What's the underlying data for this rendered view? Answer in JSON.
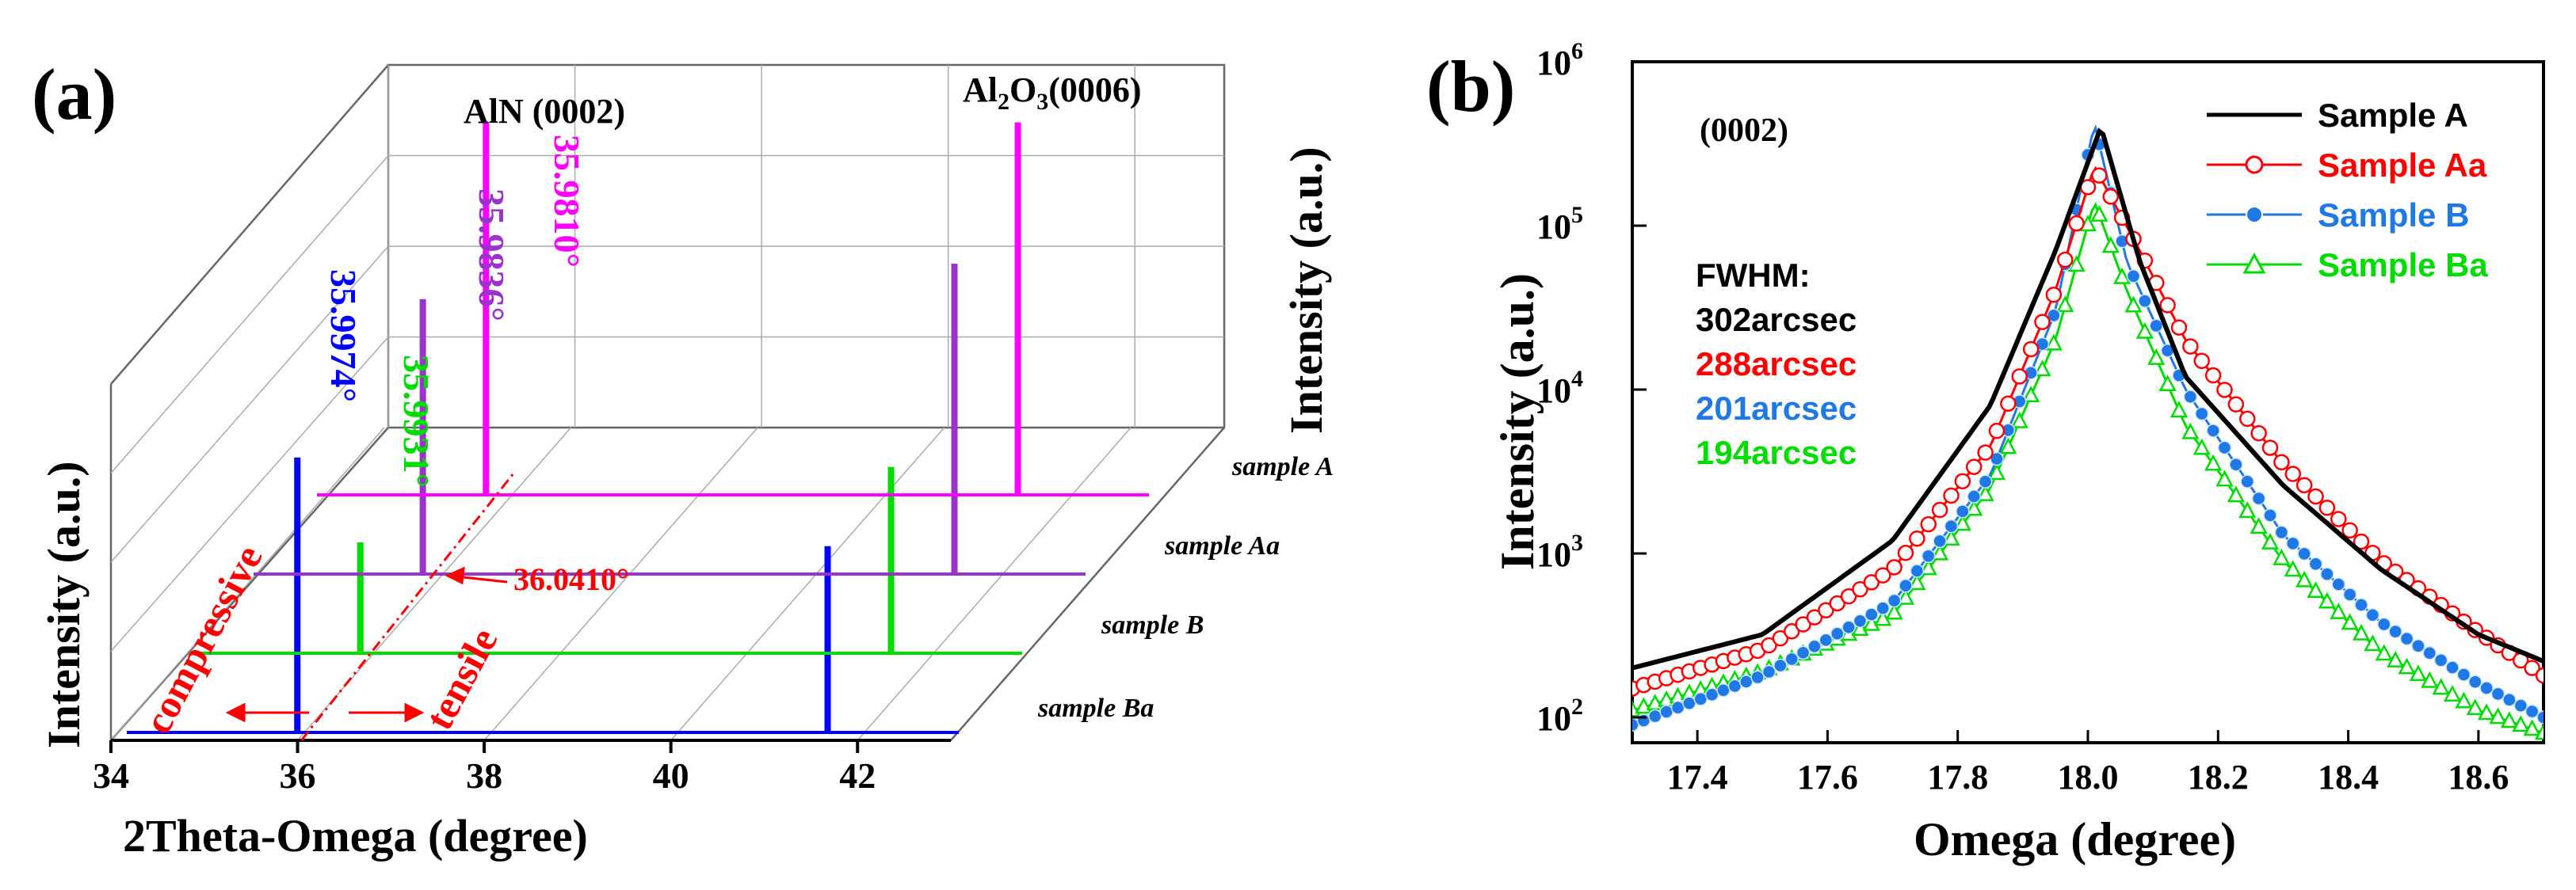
{
  "colors": {
    "sample_A": "#ff00ff",
    "sample_Aa": "#9933cc",
    "sample_B": "#00dd00",
    "sample_Ba": "#0000ff",
    "annot": "#ff0000",
    "b_A": "#000000",
    "b_Aa": "#ff0000",
    "b_B": "#1e78e6",
    "b_Ba": "#00dd00"
  },
  "chart_data": [
    {
      "panel": "(a)",
      "type": "line",
      "subtype": "3d-waterfall",
      "xlabel": "2Theta-Omega (degree)",
      "zlabel": "Intensity (a.u.)",
      "xlim": [
        34,
        43
      ],
      "xticks": [
        "34",
        "36",
        "38",
        "40",
        "42"
      ],
      "peak_labels": {
        "left": "AlN (0002)",
        "right_main": "Al",
        "right_sub": "2",
        "right_mid": "O",
        "right_sub2": "3",
        "right_end": "(0006)"
      },
      "series": [
        {
          "name": "sample Ba",
          "aln_peak": 35.9974,
          "aln_label": "35.9974°",
          "aln_height": 0.62,
          "al2o3_peak": 41.68,
          "al2o3_height": 0.42
        },
        {
          "name": "sample B",
          "aln_peak": 35.9931,
          "aln_label": "35.9931°",
          "aln_height": 0.25,
          "al2o3_peak": 41.68,
          "al2o3_height": 0.42
        },
        {
          "name": "sample Aa",
          "aln_peak": 35.9836,
          "aln_label": "35.9836°",
          "aln_height": 0.62,
          "al2o3_peak": 41.68,
          "al2o3_height": 0.7
        },
        {
          "name": "sample A",
          "aln_peak": 35.981,
          "aln_label": "35.9810°",
          "aln_height": 0.84,
          "al2o3_peak": 41.68,
          "al2o3_height": 0.84
        }
      ],
      "reference_line": {
        "value": 36.041,
        "label": "36.0410°"
      },
      "annotations": {
        "compressive": "compressive",
        "tensile": "tensile"
      }
    },
    {
      "panel": "(b)",
      "type": "line",
      "yscale": "log",
      "title_tag": "(0002)",
      "xlabel": "Omega (degree)",
      "ylabel": "Intensity (a.u.)",
      "xlim": [
        17.3,
        18.7
      ],
      "ylim": [
        70,
        1000000
      ],
      "xticks": [
        "17.4",
        "17.6",
        "17.8",
        "18.0",
        "18.2",
        "18.4",
        "18.6"
      ],
      "yticks": [
        {
          "base": "10",
          "exp": "2",
          "value": 100
        },
        {
          "base": "10",
          "exp": "3",
          "value": 1000
        },
        {
          "base": "10",
          "exp": "4",
          "value": 10000
        },
        {
          "base": "10",
          "exp": "5",
          "value": 100000
        },
        {
          "base": "10",
          "exp": "6",
          "value": 1000000
        }
      ],
      "fwhm_title": "FWHM:",
      "series": [
        {
          "name": "Sample A",
          "fwhm": "302arcsec",
          "peak": 400000,
          "center": 18.02,
          "left": [
            [
              17.3,
              200
            ],
            [
              17.5,
              320
            ],
            [
              17.7,
              1200
            ],
            [
              17.85,
              8000
            ],
            [
              17.95,
              70000
            ],
            [
              18.02,
              400000
            ]
          ],
          "right": [
            [
              18.02,
              400000
            ],
            [
              18.08,
              60000
            ],
            [
              18.15,
              12000
            ],
            [
              18.3,
              2600
            ],
            [
              18.45,
              800
            ],
            [
              18.6,
              320
            ],
            [
              18.7,
              220
            ]
          ]
        },
        {
          "name": "Sample Aa",
          "fwhm": "288arcsec",
          "peak": 230000,
          "center": 18.01,
          "left": [
            [
              17.3,
              150
            ],
            [
              17.5,
              260
            ],
            [
              17.7,
              800
            ],
            [
              17.85,
              4500
            ],
            [
              17.95,
              40000
            ],
            [
              18.01,
              230000
            ]
          ],
          "right": [
            [
              18.01,
              230000
            ],
            [
              18.08,
              70000
            ],
            [
              18.15,
              20000
            ],
            [
              18.3,
              3500
            ],
            [
              18.45,
              900
            ],
            [
              18.6,
              330
            ],
            [
              18.7,
              180
            ]
          ]
        },
        {
          "name": "Sample B",
          "fwhm": "201arcsec",
          "peak": 420000,
          "center": 18.01,
          "left": [
            [
              17.3,
              90
            ],
            [
              17.5,
              180
            ],
            [
              17.7,
              500
            ],
            [
              17.85,
              3000
            ],
            [
              17.95,
              30000
            ],
            [
              18.01,
              420000
            ]
          ],
          "right": [
            [
              18.01,
              420000
            ],
            [
              18.06,
              60000
            ],
            [
              18.15,
              10000
            ],
            [
              18.3,
              1300
            ],
            [
              18.45,
              380
            ],
            [
              18.6,
              160
            ],
            [
              18.7,
              100
            ]
          ]
        },
        {
          "name": "Sample Ba",
          "fwhm": "194arcsec",
          "peak": 140000,
          "center": 18.01,
          "left": [
            [
              17.3,
              110
            ],
            [
              17.5,
              190
            ],
            [
              17.7,
              420
            ],
            [
              17.85,
              2500
            ],
            [
              17.95,
              20000
            ],
            [
              18.01,
              140000
            ]
          ],
          "right": [
            [
              18.01,
              140000
            ],
            [
              18.06,
              40000
            ],
            [
              18.15,
              6000
            ],
            [
              18.3,
              900
            ],
            [
              18.45,
              250
            ],
            [
              18.6,
              110
            ],
            [
              18.7,
              80
            ]
          ]
        }
      ]
    }
  ]
}
